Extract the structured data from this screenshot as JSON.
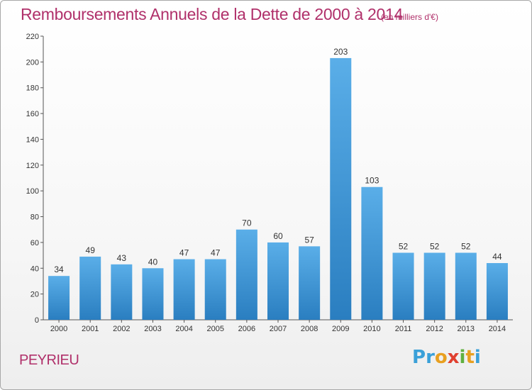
{
  "title": "Remboursements Annuels de la Dette de 2000 à 2014",
  "subtitle": "(en milliers d'€)",
  "commune": "PEYRIEU",
  "logo": {
    "letters": [
      "P",
      "r",
      "o",
      "x",
      "i",
      "t",
      "i"
    ],
    "colors": [
      "#3aa0d8",
      "#3aa0d8",
      "#e8a020",
      "#e04030",
      "#60b040",
      "#e8a020",
      "#3aa0d8"
    ]
  },
  "colors": {
    "bar_top": "#5aaee8",
    "bar_bottom": "#2a7ec0",
    "accent": "#b0306a"
  },
  "chart_data": {
    "type": "bar",
    "title": "Remboursements Annuels de la Dette de 2000 à 2014",
    "xlabel": "",
    "ylabel": "",
    "categories": [
      "2000",
      "2001",
      "2002",
      "2003",
      "2004",
      "2005",
      "2006",
      "2007",
      "2008",
      "2009",
      "2010",
      "2011",
      "2012",
      "2013",
      "2014"
    ],
    "values": [
      34,
      49,
      43,
      40,
      47,
      47,
      70,
      60,
      57,
      203,
      103,
      52,
      52,
      52,
      44
    ],
    "ylim": [
      0,
      220
    ],
    "yticks": [
      0,
      20,
      40,
      60,
      80,
      100,
      120,
      140,
      160,
      180,
      200,
      220
    ],
    "grid": false
  }
}
